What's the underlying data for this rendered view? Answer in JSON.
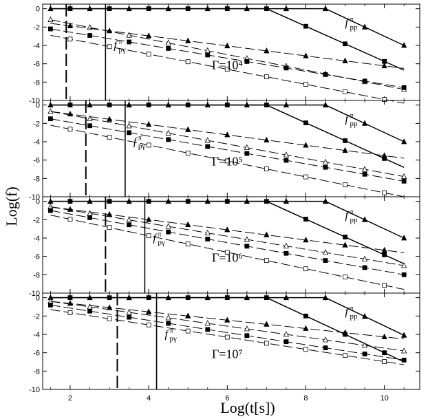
{
  "chart_data": {
    "type": "line",
    "xlabel": "Log(t[s])",
    "ylabel": "Log(f)",
    "xlim": [
      1.3,
      10.9
    ],
    "ylim": [
      -10,
      0.5
    ],
    "x_ticks": [
      2,
      4,
      6,
      8,
      10
    ],
    "y_ticks": [
      0,
      -2,
      -4,
      -6,
      -8,
      -10
    ],
    "panels": [
      {
        "gamma_label": "Γ=10⁴",
        "fpg_label": "f",
        "fpg_sup": "π",
        "fpg_sub": "pγ",
        "fpp_label": "f",
        "fpp_sup": "π",
        "fpp_sub": "pp",
        "dashed_vline_x": 1.9,
        "solid_vline_x": 2.9,
        "curves": [
          {
            "marker": "filled-triangle",
            "style": "solid",
            "x": [
              1.5,
              8.5,
              10.5
            ],
            "y": [
              0,
              0,
              -4.0
            ]
          },
          {
            "marker": "filled-square",
            "style": "solid",
            "x": [
              1.5,
              7.0,
              10.5
            ],
            "y": [
              0,
              0,
              -6.7
            ]
          },
          {
            "marker": "open-triangle",
            "style": "dashed",
            "x": [
              1.5,
              10.5
            ],
            "y": [
              -1.2,
              -8.8
            ]
          },
          {
            "marker": "filled-triangle",
            "style": "dashed",
            "x": [
              1.5,
              10.5
            ],
            "y": [
              -1.6,
              -6.5
            ]
          },
          {
            "marker": "filled-square",
            "style": "dashed",
            "x": [
              1.5,
              10.5
            ],
            "y": [
              -2.2,
              -8.6
            ]
          },
          {
            "marker": "open-square",
            "style": "dashed",
            "x": [
              1.5,
              10.5
            ],
            "y": [
              -2.9,
              -10.3
            ]
          }
        ]
      },
      {
        "gamma_label": "Γ=10⁵",
        "fpg_label": "f",
        "fpg_sup": "π",
        "fpg_sub": "pγ",
        "fpp_label": "f",
        "fpp_sup": "π",
        "fpp_sub": "pp",
        "dashed_vline_x": 2.4,
        "solid_vline_x": 3.4,
        "curves": [
          {
            "marker": "filled-triangle",
            "style": "solid",
            "x": [
              1.5,
              8.5,
              10.5
            ],
            "y": [
              0,
              0,
              -4.0
            ]
          },
          {
            "marker": "filled-square",
            "style": "solid",
            "x": [
              1.5,
              7.0,
              10.5
            ],
            "y": [
              0,
              0,
              -6.8
            ]
          },
          {
            "marker": "open-triangle",
            "style": "dashed",
            "x": [
              1.5,
              10.5
            ],
            "y": [
              -0.7,
              -7.8
            ]
          },
          {
            "marker": "filled-triangle",
            "style": "dashed",
            "x": [
              1.5,
              10.5
            ],
            "y": [
              -0.7,
              -5.8
            ]
          },
          {
            "marker": "filled-square",
            "style": "dashed",
            "x": [
              1.5,
              10.5
            ],
            "y": [
              -1.5,
              -8.3
            ]
          },
          {
            "marker": "open-square",
            "style": "dashed",
            "x": [
              1.5,
              10.5
            ],
            "y": [
              -2.2,
              -10.0
            ]
          }
        ]
      },
      {
        "gamma_label": "Γ=10⁶",
        "fpg_label": "f",
        "fpg_sup": "π",
        "fpg_sub": "pγ",
        "fpp_label": "f",
        "fpp_sup": "π",
        "fpp_sub": "pp",
        "dashed_vline_x": 2.9,
        "solid_vline_x": 3.9,
        "curves": [
          {
            "marker": "filled-triangle",
            "style": "solid",
            "x": [
              1.5,
              8.5,
              10.5
            ],
            "y": [
              0,
              0,
              -4.0
            ]
          },
          {
            "marker": "filled-square",
            "style": "solid",
            "x": [
              1.5,
              7.0,
              10.5
            ],
            "y": [
              0,
              0,
              -6.8
            ]
          },
          {
            "marker": "open-triangle",
            "style": "dashed",
            "x": [
              1.5,
              10.5
            ],
            "y": [
              -0.6,
              -7.0
            ]
          },
          {
            "marker": "filled-triangle",
            "style": "dashed",
            "x": [
              1.5,
              10.5
            ],
            "y": [
              -0.6,
              -5.6
            ]
          },
          {
            "marker": "filled-square",
            "style": "dashed",
            "x": [
              1.5,
              10.5
            ],
            "y": [
              -1.0,
              -8.0
            ]
          },
          {
            "marker": "open-square",
            "style": "dashed",
            "x": [
              1.5,
              10.5
            ],
            "y": [
              -1.5,
              -9.6
            ]
          }
        ]
      },
      {
        "gamma_label": "Γ=10⁷",
        "fpg_label": "f",
        "fpg_sup": "π",
        "fpg_sub": "pγ",
        "fpp_label": "f",
        "fpp_sup": "π",
        "fpp_sub": "pp",
        "dashed_vline_x": 3.2,
        "solid_vline_x": 4.2,
        "curves": [
          {
            "marker": "filled-triangle",
            "style": "solid",
            "x": [
              1.5,
              8.5,
              10.5
            ],
            "y": [
              0,
              0,
              -4.1
            ]
          },
          {
            "marker": "filled-square",
            "style": "solid",
            "x": [
              1.5,
              7.0,
              10.5
            ],
            "y": [
              0,
              0,
              -7.0
            ]
          },
          {
            "marker": "open-triangle",
            "style": "dashed",
            "x": [
              1.5,
              10.5
            ],
            "y": [
              -0.4,
              -5.8
            ]
          },
          {
            "marker": "filled-triangle",
            "style": "dashed",
            "x": [
              1.5,
              10.5
            ],
            "y": [
              -0.4,
              -4.5
            ]
          },
          {
            "marker": "filled-square",
            "style": "dashed",
            "x": [
              1.5,
              10.5
            ],
            "y": [
              -0.8,
              -6.8
            ]
          },
          {
            "marker": "open-square",
            "style": "dashed",
            "x": [
              1.5,
              10.5
            ],
            "y": [
              -1.3,
              -7.3
            ]
          }
        ]
      }
    ]
  }
}
